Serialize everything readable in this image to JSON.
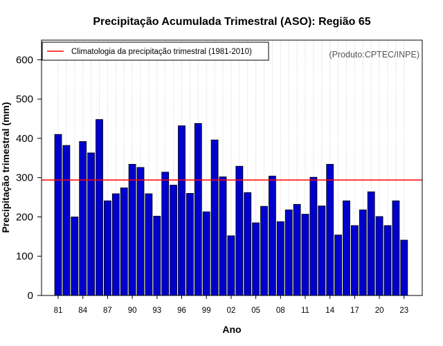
{
  "chart_data": {
    "type": "bar",
    "title": "Precipitação Acumulada Trimestral (ASO): Região 65",
    "xlabel": "Ano",
    "ylabel": "Precipitação trimestral (mm)",
    "ylim": [
      0,
      650
    ],
    "yticks": [
      0,
      100,
      200,
      300,
      400,
      500,
      600
    ],
    "years": [
      1981,
      1982,
      1983,
      1984,
      1985,
      1986,
      1987,
      1988,
      1989,
      1990,
      1991,
      1992,
      1993,
      1994,
      1995,
      1996,
      1997,
      1998,
      1999,
      2000,
      2001,
      2002,
      2003,
      2004,
      2005,
      2006,
      2007,
      2008,
      2009,
      2010,
      2011,
      2012,
      2013,
      2014,
      2015,
      2016,
      2017,
      2018,
      2019,
      2020,
      2021,
      2022,
      2023
    ],
    "values": [
      410,
      382,
      200,
      392,
      363,
      448,
      241,
      259,
      274,
      334,
      326,
      259,
      202,
      314,
      281,
      432,
      260,
      438,
      213,
      396,
      302,
      152,
      329,
      262,
      185,
      227,
      304,
      188,
      218,
      232,
      207,
      301,
      228,
      334,
      154,
      241,
      178,
      218,
      264,
      201,
      178,
      241,
      141
    ],
    "xtick_labels": [
      "81",
      "84",
      "87",
      "90",
      "93",
      "96",
      "99",
      "02",
      "05",
      "08",
      "11",
      "14",
      "17",
      "20",
      "23"
    ],
    "xtick_years": [
      1981,
      1984,
      1987,
      1990,
      1993,
      1996,
      1999,
      2002,
      2005,
      2008,
      2011,
      2014,
      2017,
      2020,
      2023
    ],
    "bar_color": "#0000cd",
    "reference_line": {
      "value": 294,
      "label": "Climatologia da precipitação trimestral (1981-2010)",
      "color": "#ff0000"
    },
    "legend_position": "top-left",
    "grid": "vertical-dotted",
    "source_note": "(Produto:CPTEC/INPE)"
  }
}
